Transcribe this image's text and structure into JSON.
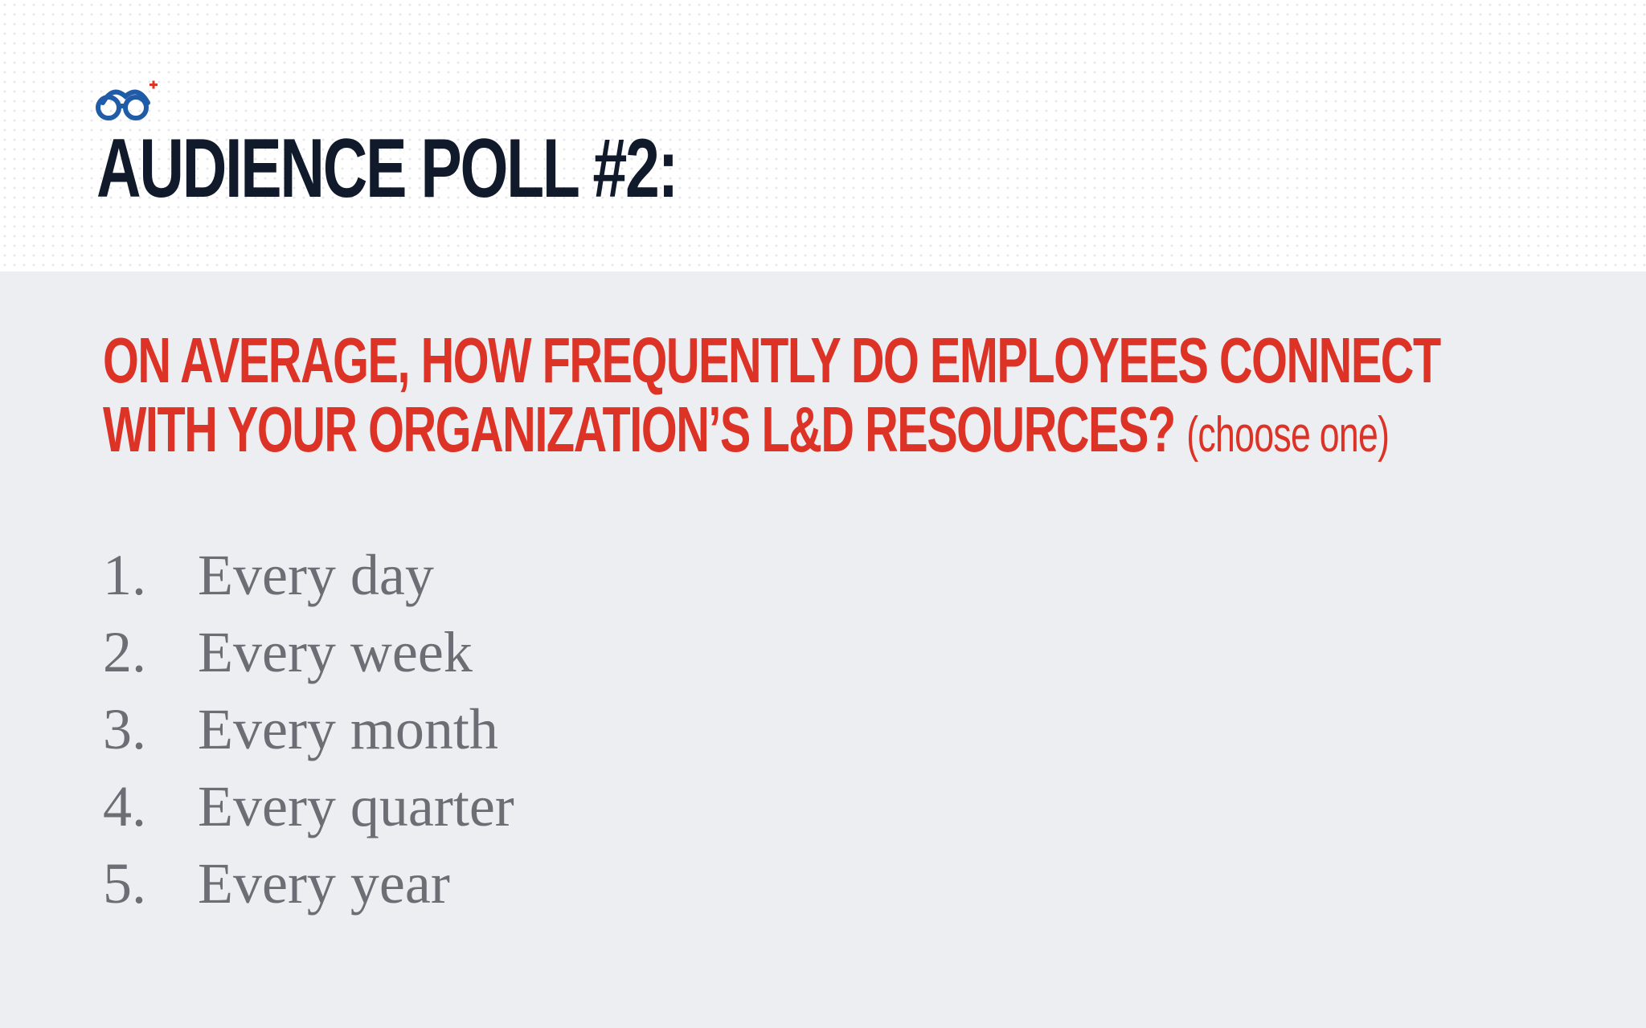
{
  "slide": {
    "title": "AUDIENCE POLL #2:",
    "logo_icon": "glasses-logo-icon",
    "question_line1": "ON AVERAGE, HOW FREQUENTLY DO EMPLOYEES CONNECT",
    "question_line2": "WITH YOUR ORGANIZATION’S L&D RESOURCES?",
    "question_hint": "(choose one)",
    "options": [
      {
        "number": "1.",
        "label": "Every day"
      },
      {
        "number": "2.",
        "label": "Every week"
      },
      {
        "number": "3.",
        "label": "Every month"
      },
      {
        "number": "4.",
        "label": "Every quarter"
      },
      {
        "number": "5.",
        "label": "Every year"
      }
    ]
  },
  "colors": {
    "title": "#111a2a",
    "question": "#dd3326",
    "options": "#6b6e74",
    "panel_background": "#edeef1",
    "logo_blue": "#1f5ba6",
    "logo_red": "#dd3326"
  }
}
